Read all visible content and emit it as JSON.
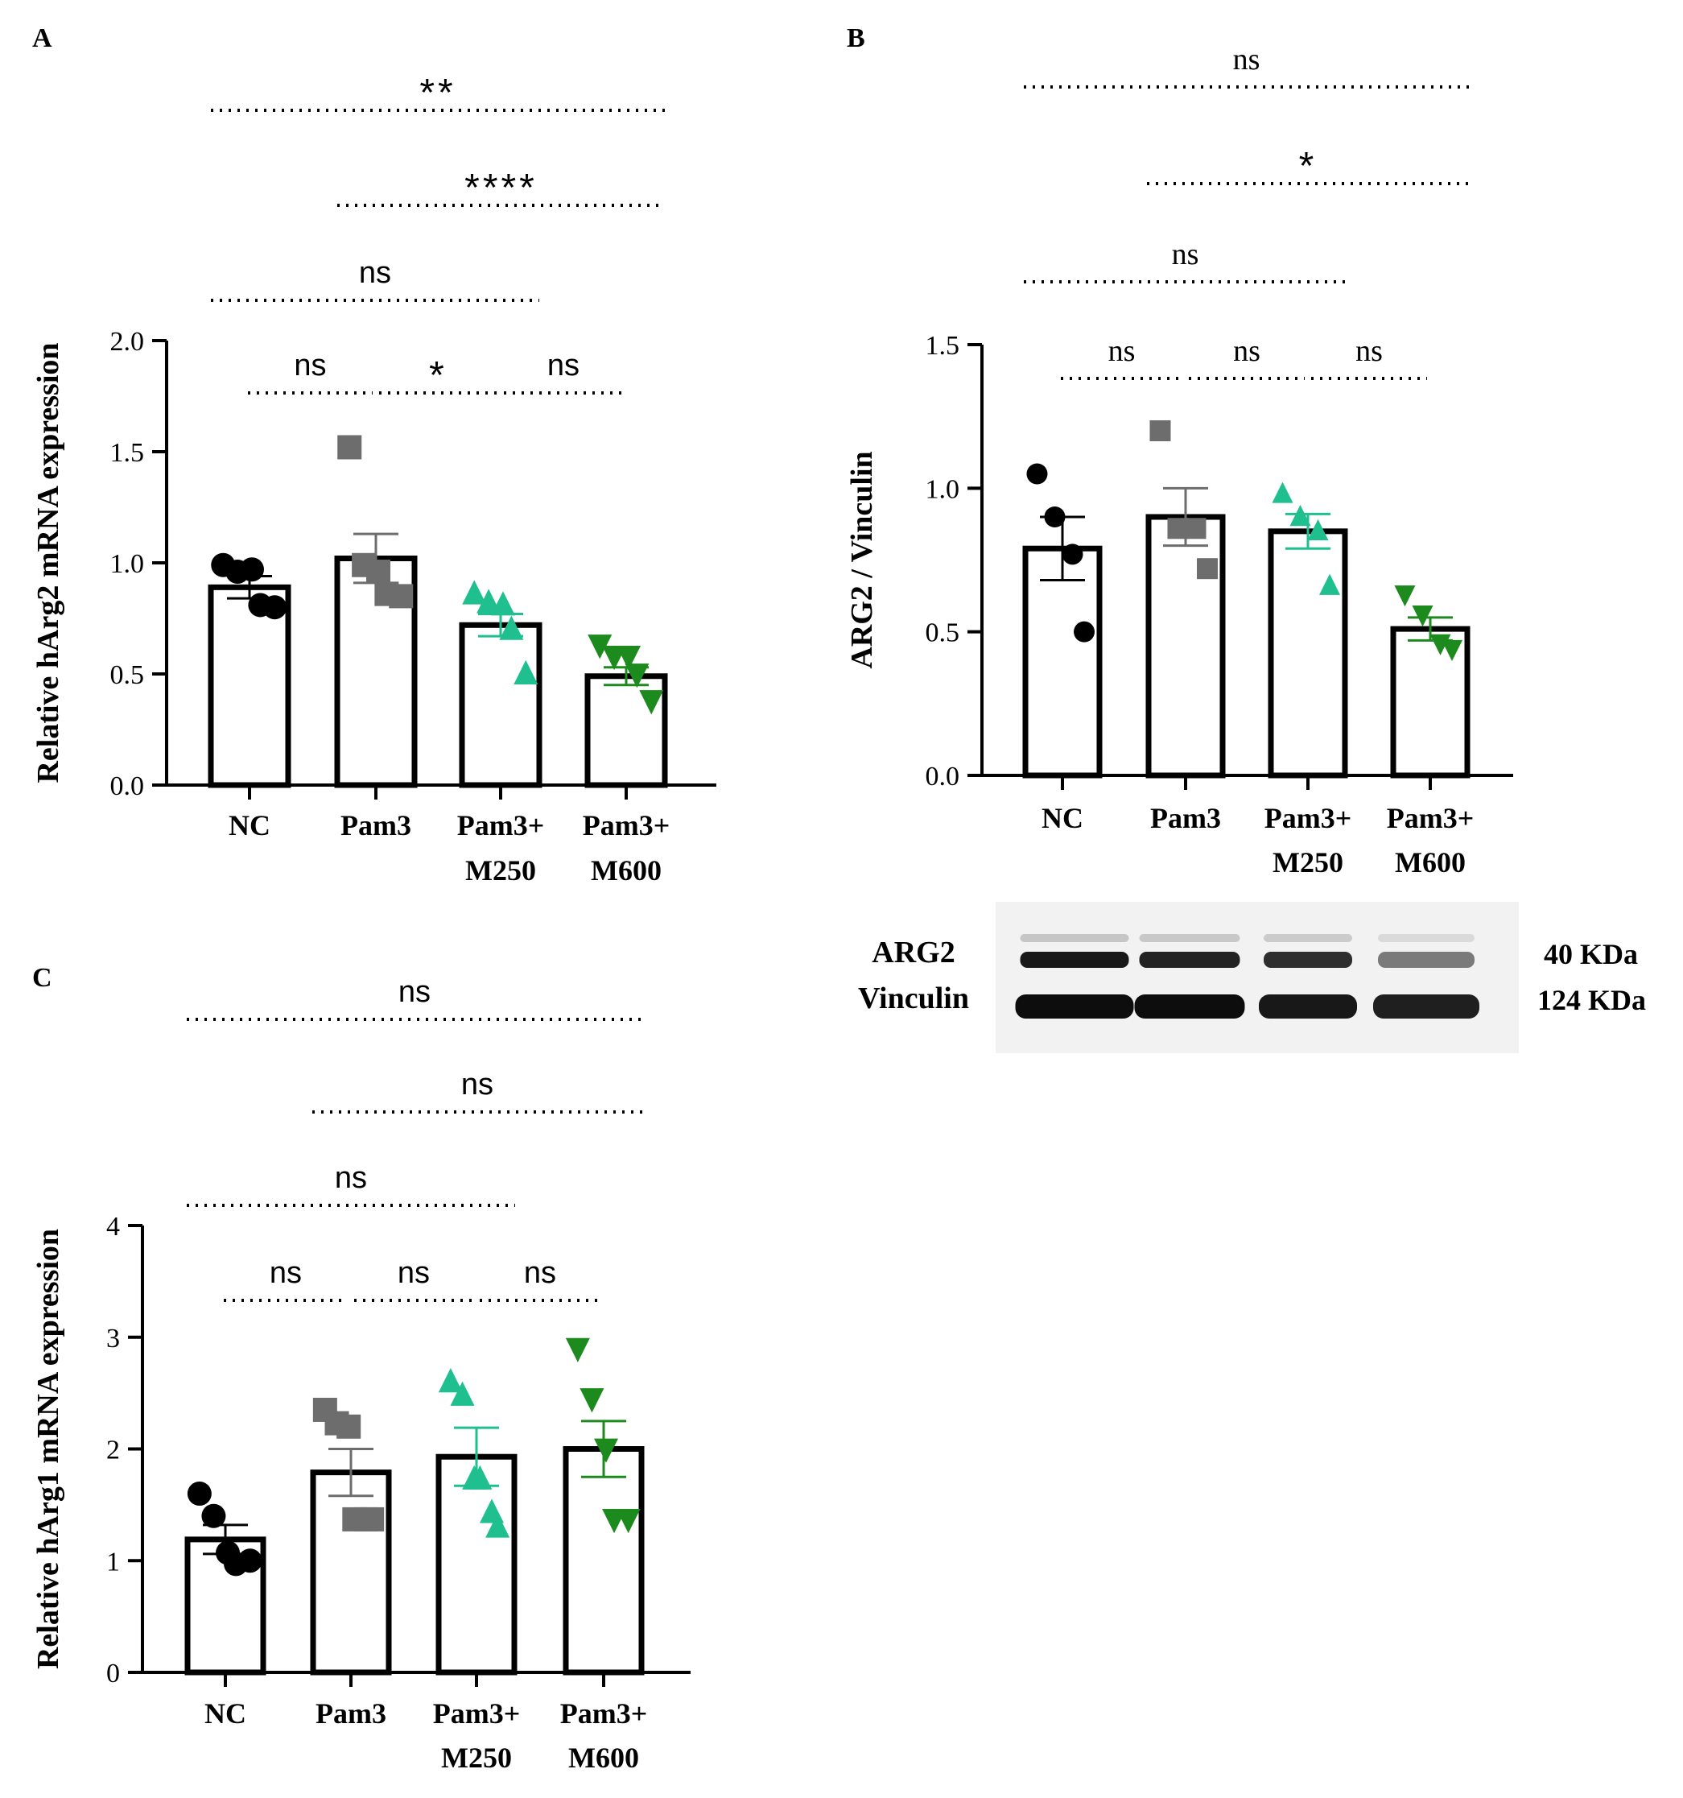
{
  "colors": {
    "nc": "#000000",
    "pam3": "#6d6d6d",
    "m250": "#1fbf8f",
    "m600": "#1c8a1c",
    "axis": "#000000"
  },
  "chart_data": [
    {
      "id": "A",
      "panel_label": "A",
      "type": "bar",
      "ylabel": "Relative hArg2 mRNA expression",
      "ylim": [
        0,
        2.0
      ],
      "yticks": [
        0,
        0.5,
        1.0,
        1.5,
        2.0
      ],
      "ytick_labels": [
        "0.0",
        "0.5",
        "1.0",
        "1.5",
        "2.0"
      ],
      "categories": [
        [
          "NC"
        ],
        [
          "Pam3"
        ],
        [
          "Pam3+",
          "M250"
        ],
        [
          "Pam3+",
          "M600"
        ]
      ],
      "category_labels_line1": [
        "NC",
        "Pam3",
        "Pam3+",
        "Pam3+"
      ],
      "category_labels_line2": [
        "",
        "",
        "M250",
        "M600"
      ],
      "means": [
        0.89,
        1.02,
        0.72,
        0.49
      ],
      "sem": [
        0.05,
        0.11,
        0.05,
        0.04
      ],
      "points": [
        [
          0.99,
          0.96,
          0.97,
          0.81,
          0.8
        ],
        [
          1.52,
          0.99,
          0.96,
          0.86,
          0.85
        ],
        [
          0.86,
          0.82,
          0.81,
          0.7,
          0.5
        ],
        [
          0.63,
          0.58,
          0.58,
          0.5,
          0.38
        ]
      ],
      "markers": [
        "circle",
        "square",
        "triangle-up",
        "triangle-down"
      ],
      "comparisons": [
        {
          "from": 0,
          "to": 1,
          "label": "ns"
        },
        {
          "from": 1,
          "to": 2,
          "label": "*"
        },
        {
          "from": 2,
          "to": 3,
          "label": "ns"
        },
        {
          "from": 0,
          "to": 2,
          "label": "ns"
        },
        {
          "from": 1,
          "to": 3,
          "label": "****"
        },
        {
          "from": 0,
          "to": 3,
          "label": "**"
        }
      ]
    },
    {
      "id": "B",
      "panel_label": "B",
      "type": "bar",
      "ylabel": "ARG2 / Vinculin",
      "ylim": [
        0,
        1.5
      ],
      "yticks": [
        0,
        0.5,
        1.0,
        1.5
      ],
      "ytick_labels": [
        "0.0",
        "0.5",
        "1.0",
        "1.5"
      ],
      "categories": [
        [
          "NC"
        ],
        [
          "Pam3"
        ],
        [
          "Pam3+",
          "M250"
        ],
        [
          "Pam3+",
          "M600"
        ]
      ],
      "category_labels_line1": [
        "NC",
        "Pam3",
        "Pam3+",
        "Pam3+"
      ],
      "category_labels_line2": [
        "",
        "",
        "M250",
        "M600"
      ],
      "means": [
        0.79,
        0.9,
        0.85,
        0.51
      ],
      "sem": [
        0.11,
        0.1,
        0.06,
        0.04
      ],
      "points": [
        [
          1.05,
          0.9,
          0.77,
          0.5
        ],
        [
          1.2,
          0.86,
          0.86,
          0.72
        ],
        [
          0.98,
          0.9,
          0.85,
          0.66
        ],
        [
          0.63,
          0.56,
          0.46,
          0.44
        ]
      ],
      "markers": [
        "circle",
        "square",
        "triangle-up",
        "triangle-down"
      ],
      "comparisons": [
        {
          "from": 0,
          "to": 1,
          "label": "ns"
        },
        {
          "from": 1,
          "to": 2,
          "label": "ns"
        },
        {
          "from": 2,
          "to": 3,
          "label": "ns"
        },
        {
          "from": 0,
          "to": 2,
          "label": "ns"
        },
        {
          "from": 1,
          "to": 3,
          "label": "*"
        },
        {
          "from": 0,
          "to": 3,
          "label": "ns"
        }
      ],
      "blot": {
        "row_labels": [
          "ARG2",
          "Vinculin"
        ],
        "size_labels": [
          "40 KDa",
          "124 KDa"
        ],
        "arg2_intensity": [
          1.0,
          0.95,
          0.9,
          0.55
        ],
        "vinculin_intensity": [
          1.0,
          1.0,
          0.95,
          0.92
        ]
      }
    },
    {
      "id": "C",
      "panel_label": "C",
      "type": "bar",
      "ylabel": "Relative hArg1 mRNA expression",
      "ylim": [
        0,
        4
      ],
      "yticks": [
        0,
        1,
        2,
        3,
        4
      ],
      "ytick_labels": [
        "0",
        "1",
        "2",
        "3",
        "4"
      ],
      "categories": [
        [
          "NC"
        ],
        [
          "Pam3"
        ],
        [
          "Pam3+",
          "M250"
        ],
        [
          "Pam3+",
          "M600"
        ]
      ],
      "category_labels_line1": [
        "NC",
        "Pam3",
        "Pam3+",
        "Pam3+"
      ],
      "category_labels_line2": [
        "",
        "",
        "M250",
        "M600"
      ],
      "means": [
        1.19,
        1.79,
        1.93,
        2.0
      ],
      "sem": [
        0.13,
        0.21,
        0.26,
        0.25
      ],
      "points": [
        [
          1.6,
          1.4,
          1.07,
          0.97,
          1.0
        ],
        [
          2.35,
          2.23,
          2.2,
          1.37,
          1.37,
          1.37
        ],
        [
          2.6,
          2.48,
          1.73,
          1.73,
          1.43,
          1.3
        ],
        [
          2.9,
          2.45,
          2.0,
          1.37,
          1.37
        ]
      ],
      "markers": [
        "circle",
        "square",
        "triangle-up",
        "triangle-down"
      ],
      "comparisons": [
        {
          "from": 0,
          "to": 1,
          "label": "ns"
        },
        {
          "from": 1,
          "to": 2,
          "label": "ns"
        },
        {
          "from": 2,
          "to": 3,
          "label": "ns"
        },
        {
          "from": 0,
          "to": 2,
          "label": "ns"
        },
        {
          "from": 1,
          "to": 3,
          "label": "ns"
        },
        {
          "from": 0,
          "to": 3,
          "label": "ns"
        }
      ]
    }
  ]
}
